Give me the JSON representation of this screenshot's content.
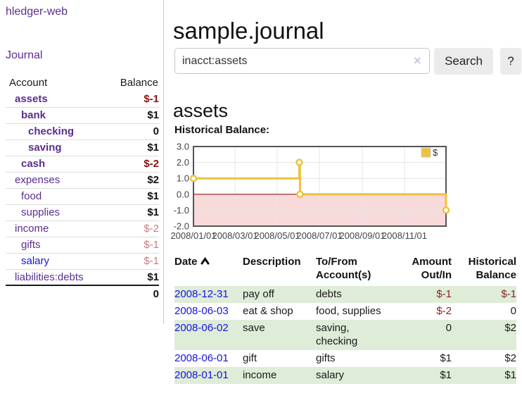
{
  "sidebar": {
    "brand": "hledger-web",
    "journal_link": "Journal",
    "accounts_header": {
      "account": "Account",
      "balance": "Balance"
    },
    "accounts": [
      {
        "name": "assets",
        "level": 1,
        "bold": true,
        "balance": "$-1"
      },
      {
        "name": "bank",
        "level": 2,
        "bold": true,
        "balance": "$1"
      },
      {
        "name": "checking",
        "level": 3,
        "bold": true,
        "balance": "0"
      },
      {
        "name": "saving",
        "level": 3,
        "bold": true,
        "balance": "$1"
      },
      {
        "name": "cash",
        "level": 2,
        "bold": true,
        "balance": "$-2"
      },
      {
        "name": "expenses",
        "level": 1,
        "bold": false,
        "balance": "$2"
      },
      {
        "name": "food",
        "level": 2,
        "bold": false,
        "balance": "$1"
      },
      {
        "name": "supplies",
        "level": 2,
        "bold": false,
        "balance": "$1"
      },
      {
        "name": "income",
        "level": 1,
        "bold": false,
        "balance": "$-2"
      },
      {
        "name": "gifts",
        "level": 2,
        "bold": false,
        "balance": "$-1"
      },
      {
        "name": "salary",
        "level": 2,
        "bold": false,
        "balance": "$-1",
        "link_variant": "blue"
      },
      {
        "name": "liabilities:debts",
        "level": 1,
        "bold": false,
        "balance": "$1"
      }
    ],
    "total": "0"
  },
  "header": {
    "title": "sample.journal",
    "search": {
      "value": "inacct:assets",
      "clear_icon": "×",
      "button": "Search",
      "help_button": "?"
    }
  },
  "register": {
    "heading": "assets",
    "chart_label": "Historical Balance:",
    "table": {
      "headers": {
        "date": "Date",
        "description": "Description",
        "accounts": "To/From\nAccount(s)",
        "amount": "Amount\nOut/In",
        "balance": "Historical\nBalance"
      },
      "sort": {
        "column": "date",
        "direction": "ascending"
      },
      "rows": [
        {
          "date": "2008-12-31",
          "description": "pay off",
          "accounts": "debts",
          "amount": "$-1",
          "balance": "$-1"
        },
        {
          "date": "2008-06-03",
          "description": "eat & shop",
          "accounts": "food, supplies",
          "amount": "$-2",
          "balance": "0"
        },
        {
          "date": "2008-06-02",
          "description": "save",
          "accounts": "saving,\nchecking",
          "amount": "0",
          "balance": "$2"
        },
        {
          "date": "2008-06-01",
          "description": "gift",
          "accounts": "gifts",
          "amount": "$1",
          "balance": "$2"
        },
        {
          "date": "2008-01-01",
          "description": "income",
          "accounts": "salary",
          "amount": "$1",
          "balance": "$1"
        }
      ]
    }
  },
  "chart_data": {
    "type": "line",
    "style": "step",
    "title": "Historical Balance",
    "series": [
      {
        "name": "$",
        "color": "#edc240",
        "points": [
          [
            "2008-01-01",
            1
          ],
          [
            "2008-06-02",
            2
          ],
          [
            "2008-06-03",
            0
          ],
          [
            "2008-12-31",
            -1
          ]
        ]
      }
    ],
    "x_ticks": [
      {
        "label": "2008/01/01",
        "date": "2008-01-01"
      },
      {
        "label": "2008/03/01",
        "date": "2008-03-01"
      },
      {
        "label": "2008/05/01",
        "date": "2008-05-01"
      },
      {
        "label": "2008/07/01",
        "date": "2008-07-01"
      },
      {
        "label": "2008/09/01",
        "date": "2008-09-01"
      },
      {
        "label": "2008/11/01",
        "date": "2008-11-01"
      }
    ],
    "y_ticks": [
      {
        "label": "3.0",
        "value": 3
      },
      {
        "label": "2.0",
        "value": 2
      },
      {
        "label": "1.0",
        "value": 1
      },
      {
        "label": "0.0",
        "value": 0
      },
      {
        "label": "-1.0",
        "value": -1
      },
      {
        "label": "-2.0",
        "value": -2
      }
    ],
    "xlim": [
      "2008-01-01",
      "2008-12-31"
    ],
    "ylim": [
      -2,
      3
    ],
    "grid": true,
    "legend_position": "top-right",
    "negative_region_color": "#f9dadb",
    "zero_line_color": "#8b0000",
    "border_color": "#545454",
    "gridline_color": "#e4e4e4"
  },
  "colors": {
    "accent_purple": "#5c2d91",
    "link_blue": "#1414e0",
    "negative_strong": "#8e1010",
    "negative_soft": "#c47d7d",
    "row_shaded_green": "#deecd8",
    "chart_series_gold": "#edc240"
  }
}
